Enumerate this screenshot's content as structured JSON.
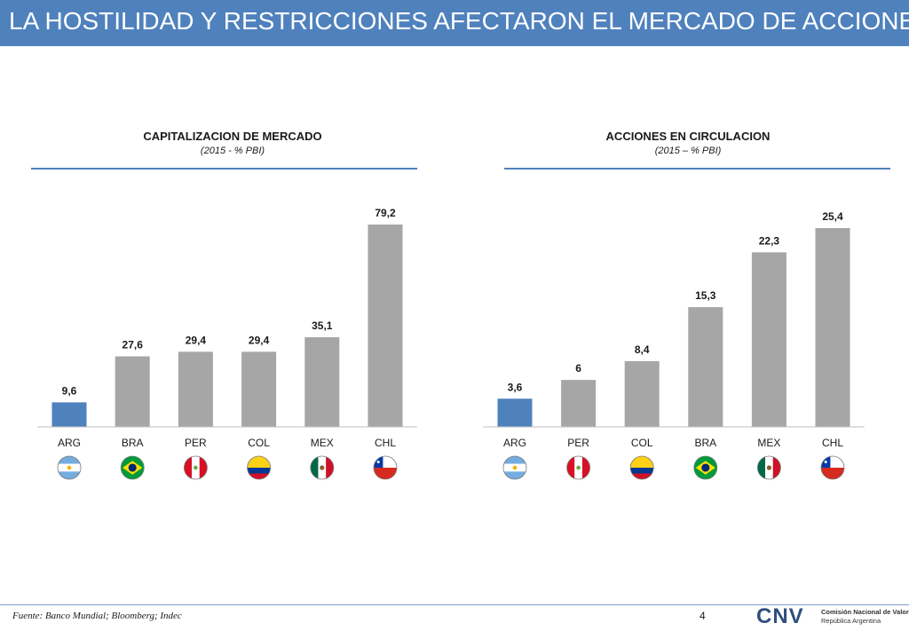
{
  "header": {
    "title": "LA HOSTILIDAD Y RESTRICCIONES AFECTARON EL MERCADO DE ACCIONES"
  },
  "colors": {
    "highlight": "#4f81bd",
    "bar": "#a6a6a6",
    "header_bg": "#4f81bd"
  },
  "chart_data": [
    {
      "type": "bar",
      "title": "CAPITALIZACION DE MERCADO",
      "subtitle": "(2015 - % PBI)",
      "categories": [
        "ARG",
        "BRA",
        "PER",
        "COL",
        "MEX",
        "CHL"
      ],
      "values": [
        9.6,
        27.6,
        29.4,
        29.4,
        35.1,
        79.2
      ],
      "labels": [
        "9,6",
        "27,6",
        "29,4",
        "29,4",
        "35,1",
        "79,2"
      ],
      "highlight": "ARG",
      "flags": [
        "flag-argentina-icon",
        "flag-brazil-icon",
        "flag-peru-icon",
        "flag-colombia-icon",
        "flag-mexico-icon",
        "flag-chile-icon"
      ],
      "ylim": [
        0,
        79.2
      ],
      "grid": false
    },
    {
      "type": "bar",
      "title": "ACCIONES EN CIRCULACION",
      "subtitle": "(2015 – % PBI)",
      "categories": [
        "ARG",
        "PER",
        "COL",
        "BRA",
        "MEX",
        "CHL"
      ],
      "values": [
        3.6,
        6,
        8.4,
        15.3,
        22.3,
        25.4
      ],
      "labels": [
        "3,6",
        "6",
        "8,4",
        "15,3",
        "22,3",
        "25,4"
      ],
      "highlight": "ARG",
      "flags": [
        "flag-argentina-icon",
        "flag-peru-icon",
        "flag-colombia-icon",
        "flag-brazil-icon",
        "flag-mexico-icon",
        "flag-chile-icon"
      ],
      "ylim": [
        0,
        25.4
      ],
      "grid": false
    }
  ],
  "footer": {
    "source": "Fuente: Banco Mundial; Bloomberg; Indec",
    "page": "4",
    "logo_text": "CNV",
    "org_line1": "Comisión Nacional de Valores",
    "org_line2": "República Argentina"
  }
}
